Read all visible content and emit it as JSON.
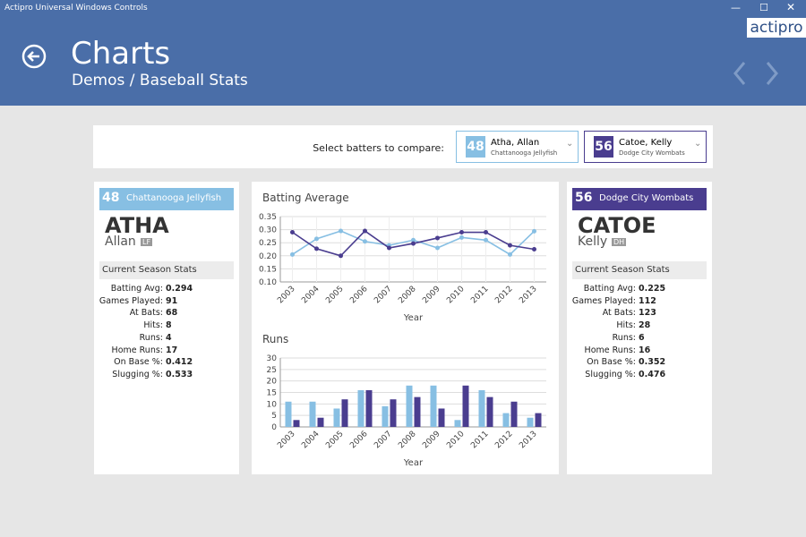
{
  "window": {
    "title": "Actipro Universal Windows Controls",
    "logo": "actipro"
  },
  "header": {
    "title": "Charts",
    "breadcrumb": "Demos / Baseball Stats"
  },
  "selector": {
    "label": "Select batters to compare:",
    "batters": [
      {
        "number": "48",
        "name": "Atha, Allan",
        "team": "Chattanooga Jellyfish"
      },
      {
        "number": "56",
        "name": "Catoe, Kelly",
        "team": "Dodge City Wombats"
      }
    ]
  },
  "players": [
    {
      "number": "48",
      "team": "Chattanooga Jellyfish",
      "last_name": "ATHA",
      "first_name": "Allan",
      "position": "LF",
      "stats_title": "Current Season Stats",
      "stats": [
        {
          "label": "Batting Avg:",
          "value": "0.294"
        },
        {
          "label": "Games Played:",
          "value": "91"
        },
        {
          "label": "At Bats:",
          "value": "68"
        },
        {
          "label": "Hits:",
          "value": "8"
        },
        {
          "label": "Runs:",
          "value": "4"
        },
        {
          "label": "Home Runs:",
          "value": "17"
        },
        {
          "label": "On Base %:",
          "value": "0.412"
        },
        {
          "label": "Slugging %:",
          "value": "0.533"
        }
      ]
    },
    {
      "number": "56",
      "team": "Dodge City Wombats",
      "last_name": "CATOE",
      "first_name": "Kelly",
      "position": "DH",
      "stats_title": "Current Season Stats",
      "stats": [
        {
          "label": "Batting Avg:",
          "value": "0.225"
        },
        {
          "label": "Games Played:",
          "value": "112"
        },
        {
          "label": "At Bats:",
          "value": "123"
        },
        {
          "label": "Hits:",
          "value": "28"
        },
        {
          "label": "Runs:",
          "value": "6"
        },
        {
          "label": "Home Runs:",
          "value": "16"
        },
        {
          "label": "On Base %:",
          "value": "0.352"
        },
        {
          "label": "Slugging %:",
          "value": "0.476"
        }
      ]
    }
  ],
  "chart_data": [
    {
      "type": "line",
      "title": "Batting Average",
      "xlabel": "Year",
      "grid": true,
      "categories": [
        "2003",
        "2004",
        "2005",
        "2006",
        "2007",
        "2008",
        "2009",
        "2010",
        "2011",
        "2012",
        "2013"
      ],
      "series": [
        {
          "color": "#87bfe3",
          "values": [
            0.205,
            0.265,
            0.295,
            0.255,
            0.24,
            0.26,
            0.23,
            0.27,
            0.26,
            0.205,
            0.294
          ]
        },
        {
          "color": "#4a3d8f",
          "values": [
            0.29,
            0.227,
            0.2,
            0.295,
            0.23,
            0.247,
            0.268,
            0.29,
            0.29,
            0.24,
            0.225
          ]
        }
      ],
      "ylim": [
        0.1,
        0.35
      ],
      "yticks": [
        {
          "value": 0.1,
          "label": "0.10"
        },
        0.15,
        {
          "value": 0.2,
          "label": "0.20"
        },
        0.25,
        {
          "value": 0.3,
          "label": "0.30"
        },
        0.35
      ]
    },
    {
      "type": "bar",
      "title": "Runs",
      "xlabel": "Year",
      "grid": true,
      "categories": [
        "2003",
        "2004",
        "2005",
        "2006",
        "2007",
        "2008",
        "2009",
        "2010",
        "2011",
        "2012",
        "2013"
      ],
      "series": [
        {
          "color": "#87bfe3",
          "values": [
            11,
            11,
            8,
            16,
            9,
            18,
            18,
            3,
            16,
            6,
            4
          ]
        },
        {
          "color": "#4a3d8f",
          "values": [
            3,
            4,
            12,
            16,
            12,
            13,
            8,
            18,
            13,
            11,
            6
          ]
        }
      ],
      "ylim": [
        0,
        30
      ],
      "yticks": [
        0,
        5,
        10,
        15,
        20,
        25,
        30
      ]
    }
  ]
}
